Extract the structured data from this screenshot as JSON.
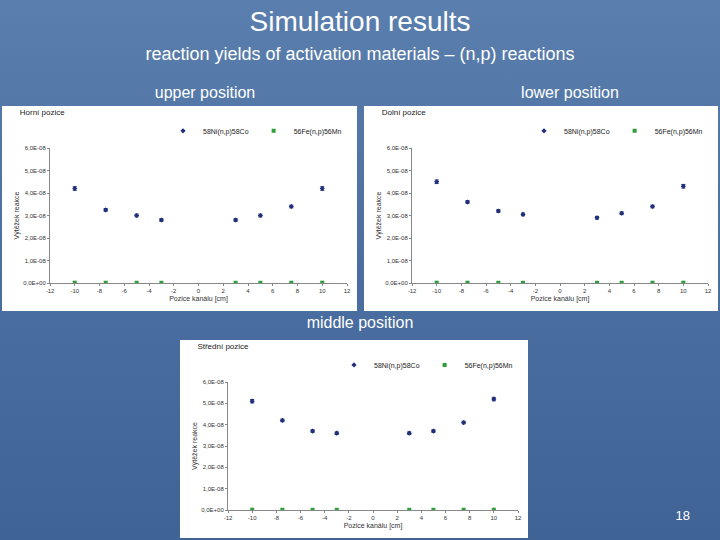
{
  "slide": {
    "title": "Simulation results",
    "subtitle": "reaction yields of activation materials – (n,p) reactions",
    "panel_labels": [
      "upper position",
      "lower position",
      "middle position"
    ],
    "page": 18
  },
  "chart_data": [
    {
      "type": "scatter",
      "title": "Horní pozice",
      "x_label": "Pozice kanálu [cm]",
      "y_label": "Výtěžek reakce",
      "x": [
        -10,
        -7.5,
        -5,
        -3,
        3,
        5,
        7.5,
        10
      ],
      "series": [
        {
          "name": "58Ni(n,p)58Co",
          "color": "#1f2f7a",
          "marker": "diamond",
          "values": [
            4.2e-08,
            3.25e-08,
            3e-08,
            2.8e-08,
            2.8e-08,
            3e-08,
            3.4e-08,
            4.2e-08
          ],
          "errors": [
            8e-10,
            6e-10,
            6e-10,
            6e-10,
            6e-10,
            6e-10,
            6e-10,
            8e-10
          ]
        },
        {
          "name": "56Fe(n,p)56Mn",
          "color": "#2e9e3a",
          "marker": "square",
          "values": [
            1.5e-10,
            1.2e-10,
            1e-10,
            1e-10,
            1e-10,
            1e-10,
            1.2e-10,
            1.5e-10
          ]
        }
      ],
      "xlim": [
        -12,
        12
      ],
      "xticks": [
        -12,
        -10,
        -8,
        -6,
        -4,
        -2,
        0,
        2,
        4,
        6,
        8,
        10,
        12
      ],
      "ylim": [
        0,
        6e-08
      ],
      "yticks": [
        {
          "value": 0,
          "label": "0,0E+00"
        },
        {
          "value": 1e-08,
          "label": "1,0E-08"
        },
        {
          "value": 2e-08,
          "label": "2,0E-08"
        },
        {
          "value": 3e-08,
          "label": "3,0E-08"
        },
        {
          "value": 4e-08,
          "label": "4,0E-08"
        },
        {
          "value": 5e-08,
          "label": "5,0E-08"
        },
        {
          "value": 6e-08,
          "label": "6,0E-08"
        }
      ],
      "grid": false,
      "legend": "top"
    },
    {
      "type": "scatter",
      "title": "Dolní pozice",
      "x_label": "Pozice kanálu [cm]",
      "y_label": "Výtěžek reakce",
      "x": [
        -10,
        -7.5,
        -5,
        -3,
        3,
        5,
        7.5,
        10
      ],
      "series": [
        {
          "name": "58Ni(n,p)58Co",
          "color": "#1f2f7a",
          "marker": "diamond",
          "values": [
            4.5e-08,
            3.6e-08,
            3.2e-08,
            3.05e-08,
            2.9e-08,
            3.1e-08,
            3.4e-08,
            4.3e-08
          ],
          "errors": [
            8e-10,
            6e-10,
            6e-10,
            6e-10,
            6e-10,
            6e-10,
            6e-10,
            8e-10
          ]
        },
        {
          "name": "56Fe(n,p)56Mn",
          "color": "#2e9e3a",
          "marker": "square",
          "values": [
            1.5e-10,
            1.2e-10,
            1e-10,
            1e-10,
            1e-10,
            1e-10,
            1.2e-10,
            1.5e-10
          ]
        }
      ],
      "xlim": [
        -12,
        12
      ],
      "xticks": [
        -12,
        -10,
        -8,
        -6,
        -4,
        -2,
        0,
        2,
        4,
        6,
        8,
        10,
        12
      ],
      "ylim": [
        0,
        6e-08
      ],
      "yticks": [
        {
          "value": 0,
          "label": "0,0E+00"
        },
        {
          "value": 1e-08,
          "label": "1,0E-08"
        },
        {
          "value": 2e-08,
          "label": "2,0E-08"
        },
        {
          "value": 3e-08,
          "label": "3,0E-08"
        },
        {
          "value": 4e-08,
          "label": "4,0E-08"
        },
        {
          "value": 5e-08,
          "label": "5,0E-08"
        },
        {
          "value": 6e-08,
          "label": "6,0E-08"
        }
      ],
      "grid": false,
      "legend": "top"
    },
    {
      "type": "scatter",
      "title": "Střední pozice",
      "x_label": "Pozice kanálu [cm]",
      "y_label": "Výtěžek reakce",
      "x": [
        -10,
        -7.5,
        -5,
        -3,
        3,
        5,
        7.5,
        10
      ],
      "series": [
        {
          "name": "58Ni(n,p)58Co",
          "color": "#1f2f7a",
          "marker": "diamond",
          "values": [
            5.1e-08,
            4.2e-08,
            3.7e-08,
            3.6e-08,
            3.6e-08,
            3.7e-08,
            4.1e-08,
            5.2e-08
          ],
          "errors": [
            8e-10,
            6e-10,
            6e-10,
            6e-10,
            6e-10,
            6e-10,
            6e-10,
            8e-10
          ]
        },
        {
          "name": "56Fe(n,p)56Mn",
          "color": "#2e9e3a",
          "marker": "square",
          "values": [
            1.5e-10,
            1.2e-10,
            1e-10,
            1e-10,
            1e-10,
            1e-10,
            1.2e-10,
            1.5e-10
          ]
        }
      ],
      "xlim": [
        -12,
        12
      ],
      "xticks": [
        -12,
        -10,
        -8,
        -6,
        -4,
        -2,
        0,
        2,
        4,
        6,
        8,
        10,
        12
      ],
      "ylim": [
        0,
        6e-08
      ],
      "yticks": [
        {
          "value": 0,
          "label": "0,0E+00"
        },
        {
          "value": 1e-08,
          "label": "1,0E-08"
        },
        {
          "value": 2e-08,
          "label": "2,0E-08"
        },
        {
          "value": 3e-08,
          "label": "3,0E-08"
        },
        {
          "value": 4e-08,
          "label": "4,0E-08"
        },
        {
          "value": 5e-08,
          "label": "5,0E-08"
        },
        {
          "value": 6e-08,
          "label": "6,0E-08"
        }
      ],
      "grid": false,
      "legend": "top"
    }
  ]
}
